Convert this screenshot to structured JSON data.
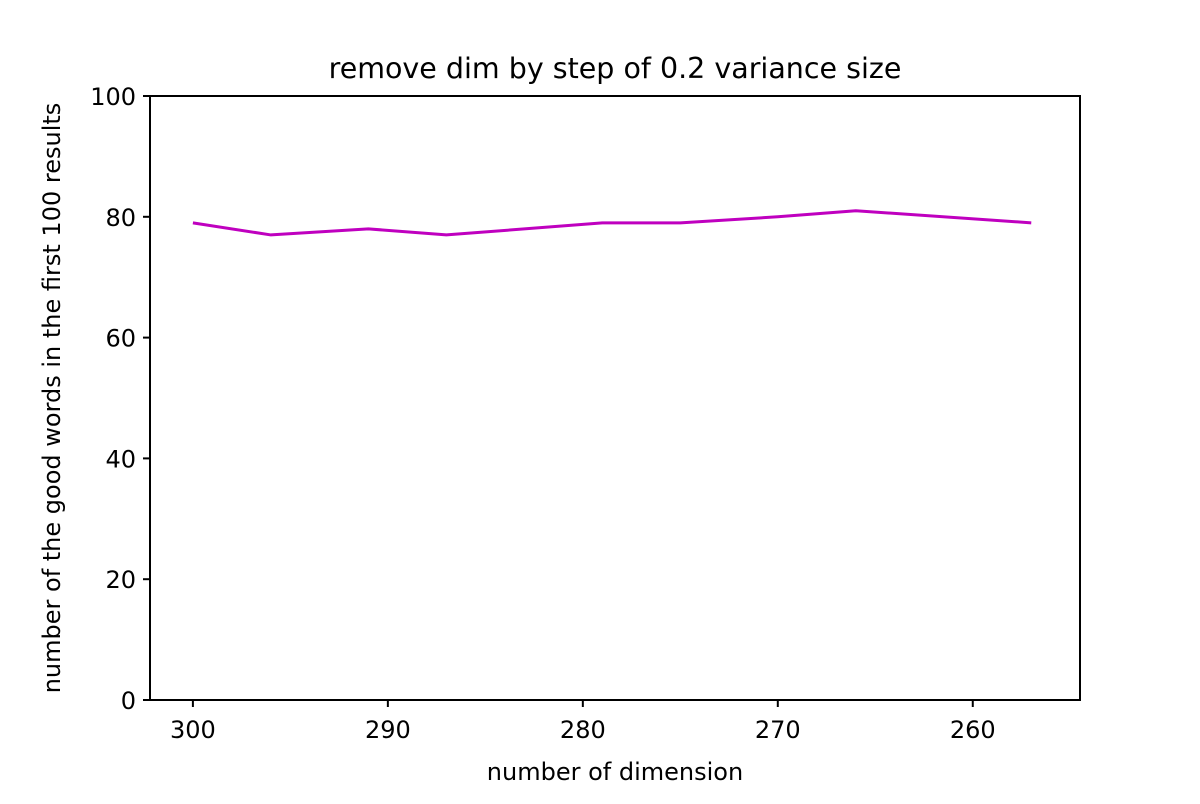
{
  "chart_data": {
    "type": "line",
    "title": "remove dim by step of 0.2 variance size",
    "xlabel": "number of dimension",
    "ylabel": "number of the good words in the first 100 results",
    "x_reversed": true,
    "xlim": [
      302.2,
      254.5
    ],
    "ylim": [
      0,
      100
    ],
    "x_ticks": [
      300,
      290,
      280,
      270,
      260
    ],
    "y_ticks": [
      0,
      20,
      40,
      60,
      80,
      100
    ],
    "grid": false,
    "series": [
      {
        "color": "#bf00bf",
        "x": [
          300,
          296,
          291,
          287,
          279,
          275,
          270,
          266,
          257
        ],
        "y": [
          79,
          77,
          78,
          77,
          79,
          79,
          80,
          81,
          79
        ]
      }
    ]
  }
}
